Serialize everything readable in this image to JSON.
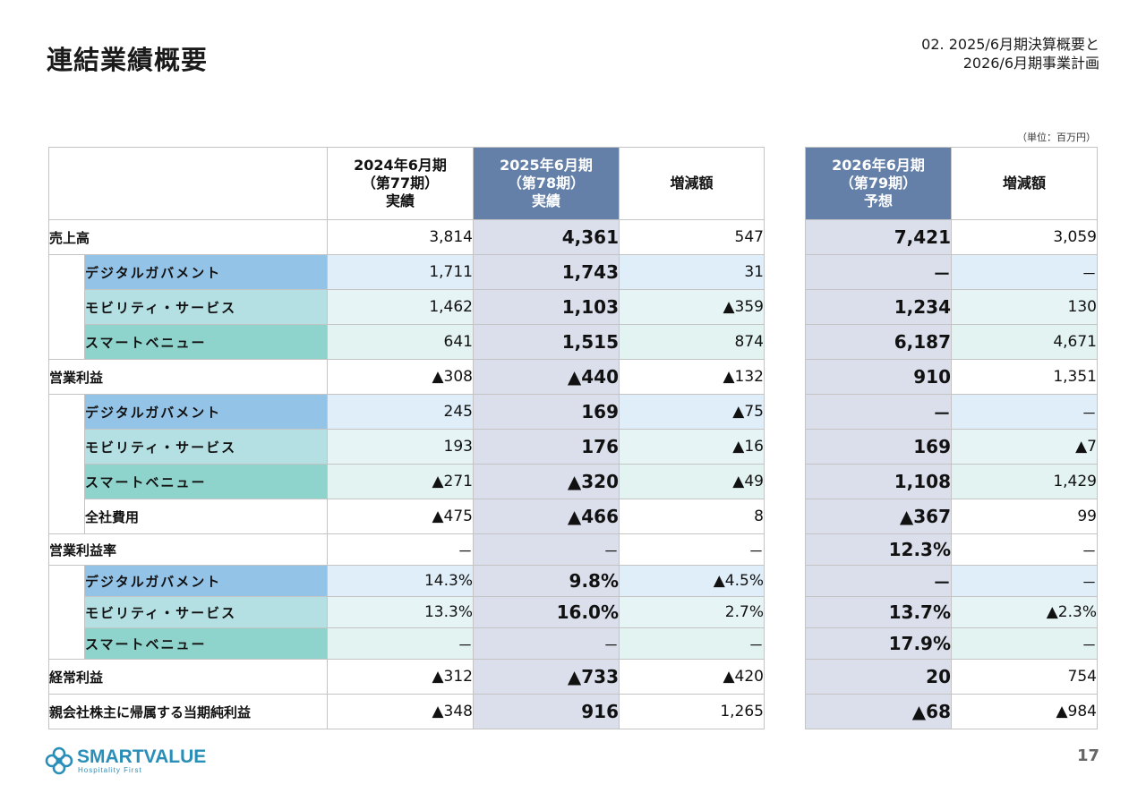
{
  "header": {
    "title": "連結業績概要",
    "section_line1": "02. 2025/6月期決算概要と",
    "section_line2": "2026/6月期事業計画",
    "unit_note": "（単位：百万円）"
  },
  "columns": {
    "fy2024": [
      "2024年6月期",
      "（第77期）",
      "実績"
    ],
    "fy2025": [
      "2025年6月期",
      "（第78期）",
      "実績"
    ],
    "diff": "増減額",
    "fy2026": [
      "2026年6月期",
      "（第79期）",
      "予想"
    ],
    "diff2": "増減額"
  },
  "rows": [
    {
      "label": "売上高",
      "v2024": "3,814",
      "v2025": "4,361",
      "diff": "547",
      "v2026": "7,421",
      "diff2": "3,059"
    },
    {
      "label": "デジタルガバメント",
      "v2024": "1,711",
      "v2025": "1,743",
      "diff": "31",
      "v2026": "－",
      "diff2": "－"
    },
    {
      "label": "モビリティ・サービス",
      "v2024": "1,462",
      "v2025": "1,103",
      "diff": "▲359",
      "v2026": "1,234",
      "diff2": "130"
    },
    {
      "label": "スマートベニュー",
      "v2024": "641",
      "v2025": "1,515",
      "diff": "874",
      "v2026": "6,187",
      "diff2": "4,671"
    },
    {
      "label": "営業利益",
      "v2024": "▲308",
      "v2025": "▲440",
      "diff": "▲132",
      "v2026": "910",
      "diff2": "1,351"
    },
    {
      "label": "デジタルガバメント",
      "v2024": "245",
      "v2025": "169",
      "diff": "▲75",
      "v2026": "－",
      "diff2": "－"
    },
    {
      "label": "モビリティ・サービス",
      "v2024": "193",
      "v2025": "176",
      "diff": "▲16",
      "v2026": "169",
      "diff2": "▲7"
    },
    {
      "label": "スマートベニュー",
      "v2024": "▲271",
      "v2025": "▲320",
      "diff": "▲49",
      "v2026": "1,108",
      "diff2": "1,429"
    },
    {
      "label": "全社費用",
      "v2024": "▲475",
      "v2025": "▲466",
      "diff": "8",
      "v2026": "▲367",
      "diff2": "99"
    },
    {
      "label": "営業利益率",
      "v2024": "－",
      "v2025": "－",
      "diff": "－",
      "v2026": "12.3%",
      "diff2": "－"
    },
    {
      "label": "デジタルガバメント",
      "v2024": "14.3%",
      "v2025": "9.8%",
      "diff": "▲4.5%",
      "v2026": "－",
      "diff2": "－"
    },
    {
      "label": "モビリティ・サービス",
      "v2024": "13.3%",
      "v2025": "16.0%",
      "diff": "2.7%",
      "v2026": "13.7%",
      "diff2": "▲2.3%"
    },
    {
      "label": "スマートベニュー",
      "v2024": "－",
      "v2025": "－",
      "diff": "－",
      "v2026": "17.9%",
      "diff2": "－"
    },
    {
      "label": "経常利益",
      "v2024": "▲312",
      "v2025": "▲733",
      "diff": "▲420",
      "v2026": "20",
      "diff2": "754"
    },
    {
      "label": "親会社株主に帰属する当期純利益",
      "v2024": "▲348",
      "v2025": "916",
      "diff": "1,265",
      "v2026": "▲68",
      "diff2": "▲984"
    }
  ],
  "colors": {
    "header_highlight": "#6480a8",
    "highlight_column": "#dadfeb",
    "digital_government": "#94c3e8",
    "mobility_service": "#b4dfe3",
    "smart_venue": "#8fd4cc",
    "logo": "#2a8fb8"
  },
  "footer": {
    "logo_text": "SMARTVALUE",
    "logo_tagline": "Hospitality First",
    "page_number": "17"
  }
}
